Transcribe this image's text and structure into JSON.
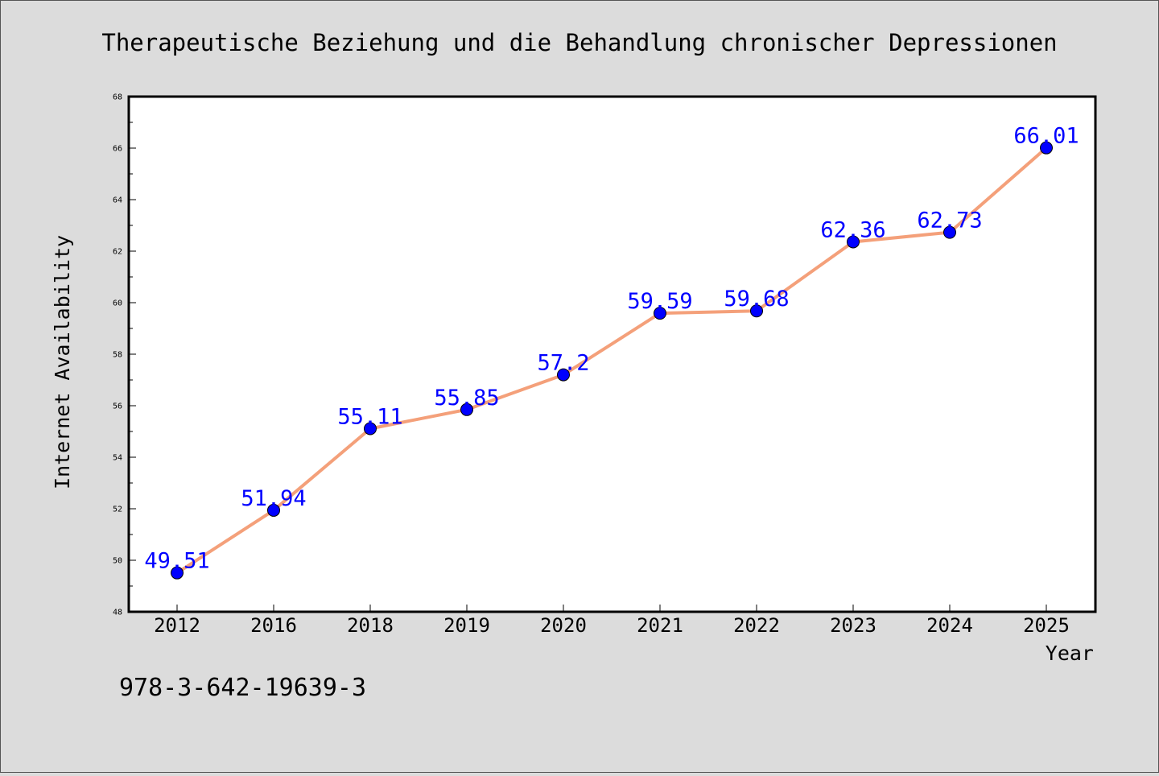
{
  "chart_data": {
    "type": "line",
    "title": "Therapeutische Beziehung und die Behandlung chronischer Depressionen",
    "xlabel": "Year",
    "ylabel": "Internet Availability",
    "categories": [
      "2012",
      "2016",
      "2018",
      "2019",
      "2020",
      "2021",
      "2022",
      "2023",
      "2024",
      "2025"
    ],
    "series": [
      {
        "values": [
          49.51,
          51.94,
          55.11,
          55.85,
          57.2,
          59.59,
          59.68,
          62.36,
          62.73,
          66.01
        ],
        "labels": [
          "49.51",
          "51.94",
          "55.11",
          "55.85",
          "57.2",
          "59.59",
          "59.68",
          "62.36",
          "62.73",
          "66.01"
        ]
      }
    ],
    "ylim": [
      48,
      68
    ],
    "yticks": [
      48,
      50,
      52,
      54,
      56,
      58,
      60,
      62,
      64,
      66,
      68
    ],
    "grid": false,
    "line_color": "#f4a07a",
    "marker_color": "#0000ff",
    "label_color": "#0000ff",
    "background_color": "#dcdcdc",
    "plot_background": "#ffffff"
  },
  "footer": {
    "isbn": "978-3-642-19639-3"
  }
}
